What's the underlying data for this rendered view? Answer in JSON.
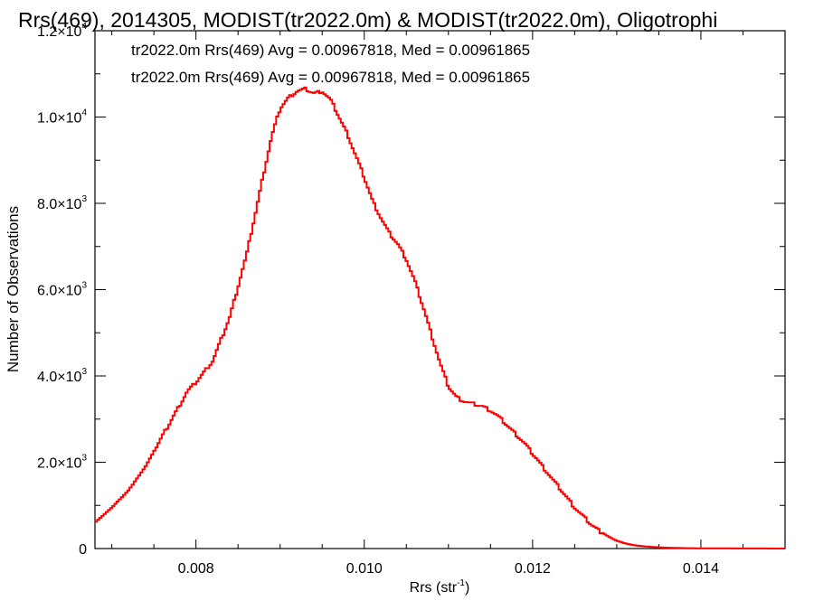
{
  "chart_data": {
    "type": "line",
    "title": "Rrs(469), 2014305, MODIST(tr2022.0m) & MODIST(tr2022.0m), Oligotrophi",
    "xlabel": "Rrs (str",
    "xlabel_sup": "-1",
    "xlabel_end": ")",
    "ylabel": "Number of Observations",
    "xlim": [
      0.0068,
      0.015
    ],
    "ylim": [
      0,
      12000
    ],
    "x_ticks": [
      {
        "value": 0.008,
        "label": "0.008"
      },
      {
        "value": 0.01,
        "label": "0.010"
      },
      {
        "value": 0.012,
        "label": "0.012"
      },
      {
        "value": 0.014,
        "label": "0.014"
      }
    ],
    "y_ticks": [
      {
        "value": 0,
        "mant": "0",
        "exp": ""
      },
      {
        "value": 2000,
        "mant": "2.0×10",
        "exp": "3"
      },
      {
        "value": 4000,
        "mant": "4.0×10",
        "exp": "3"
      },
      {
        "value": 6000,
        "mant": "6.0×10",
        "exp": "3"
      },
      {
        "value": 8000,
        "mant": "8.0×10",
        "exp": "3"
      },
      {
        "value": 10000,
        "mant": "1.0×10",
        "exp": "4"
      },
      {
        "value": 12000,
        "mant": "1.2×10",
        "exp": "4"
      }
    ],
    "legend": [
      {
        "text": "tr2022.0m Rrs(469) Avg = 0.00967818, Med = 0.00961865",
        "color": "#000000"
      },
      {
        "text": "tr2022.0m Rrs(469) Avg = 0.00967818, Med = 0.00961865",
        "color": "#ff0000"
      }
    ],
    "series": [
      {
        "color": "#ff0000",
        "x": [
          0.0068,
          0.007,
          0.0072,
          0.0074,
          0.0076,
          0.0078,
          0.0079,
          0.008,
          0.0082,
          0.0084,
          0.0086,
          0.0087,
          0.0088,
          0.0089,
          0.009,
          0.0091,
          0.0092,
          0.0093,
          0.0094,
          0.0095,
          0.0096,
          0.0097,
          0.0098,
          0.0099,
          0.01,
          0.0101,
          0.0102,
          0.0103,
          0.0104,
          0.0105,
          0.0106,
          0.0107,
          0.0108,
          0.0109,
          0.011,
          0.0111,
          0.0112,
          0.0113,
          0.0114,
          0.0115,
          0.0116,
          0.0117,
          0.0118,
          0.0119,
          0.012,
          0.0121,
          0.0122,
          0.0123,
          0.0124,
          0.0125,
          0.0126,
          0.0127,
          0.0128,
          0.0129,
          0.013,
          0.0131,
          0.0132,
          0.0133,
          0.0134,
          0.0135,
          0.0136,
          0.0137,
          0.0138,
          0.014,
          0.0142,
          0.0144,
          0.0146,
          0.0148,
          0.015
        ],
        "y": [
          600,
          950,
          1350,
          1900,
          2600,
          3300,
          3650,
          3850,
          4350,
          5350,
          6800,
          7700,
          8650,
          9550,
          10200,
          10450,
          10600,
          10650,
          10550,
          10600,
          10400,
          10000,
          9600,
          9100,
          8600,
          8050,
          7650,
          7300,
          7050,
          6700,
          6200,
          5600,
          4950,
          4300,
          3750,
          3500,
          3400,
          3350,
          3300,
          3200,
          3050,
          2850,
          2650,
          2450,
          2200,
          1950,
          1700,
          1450,
          1200,
          950,
          750,
          550,
          400,
          280,
          180,
          120,
          80,
          55,
          40,
          28,
          20,
          15,
          10,
          6,
          4,
          3,
          2,
          1,
          1
        ]
      }
    ],
    "grid": false
  }
}
